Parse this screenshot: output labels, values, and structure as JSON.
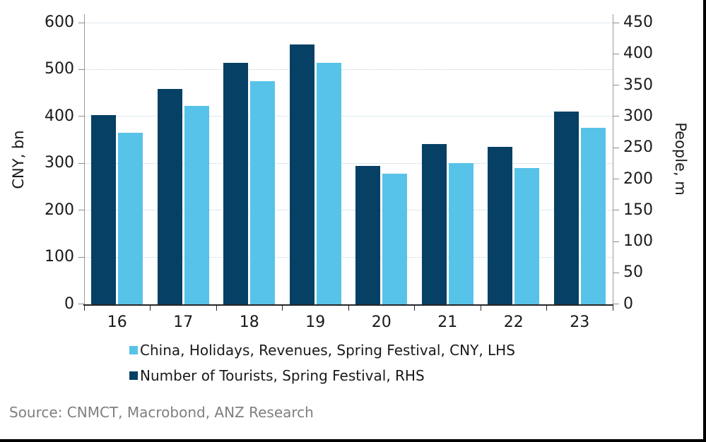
{
  "chart_data": {
    "type": "bar",
    "categories": [
      "16",
      "17",
      "18",
      "19",
      "20",
      "21",
      "22",
      "23"
    ],
    "series": [
      {
        "name": "China, Holidays, Revenues, Spring Festival, CNY, LHS",
        "axis": "left",
        "color": "#58c3e8",
        "values": [
          365,
          423,
          475,
          514,
          278,
          301,
          290,
          376
        ]
      },
      {
        "name": "Number of Tourists, Spring Festival, RHS",
        "axis": "right",
        "color": "#064064",
        "values": [
          302,
          344,
          386,
          415,
          221,
          256,
          251,
          308
        ]
      }
    ],
    "left_axis": {
      "label": "CNY, bn",
      "min": 0,
      "max": 600,
      "step": 100
    },
    "right_axis": {
      "label": "People, m",
      "min": 0,
      "max": 450,
      "step": 50
    },
    "grid": "horizontal-dotted",
    "legend_position": "bottom",
    "bar_order_in_group": [
      "right-axis-series-first",
      "left-axis-series-second"
    ]
  },
  "legend": {
    "items": [
      {
        "label": "China, Holidays, Revenues, Spring Festival, CNY, LHS",
        "color": "#58c3e8"
      },
      {
        "label": "Number of Tourists, Spring Festival, RHS",
        "color": "#064064"
      }
    ]
  },
  "source": "Source: CNMCT, Macrobond, ANZ Research"
}
